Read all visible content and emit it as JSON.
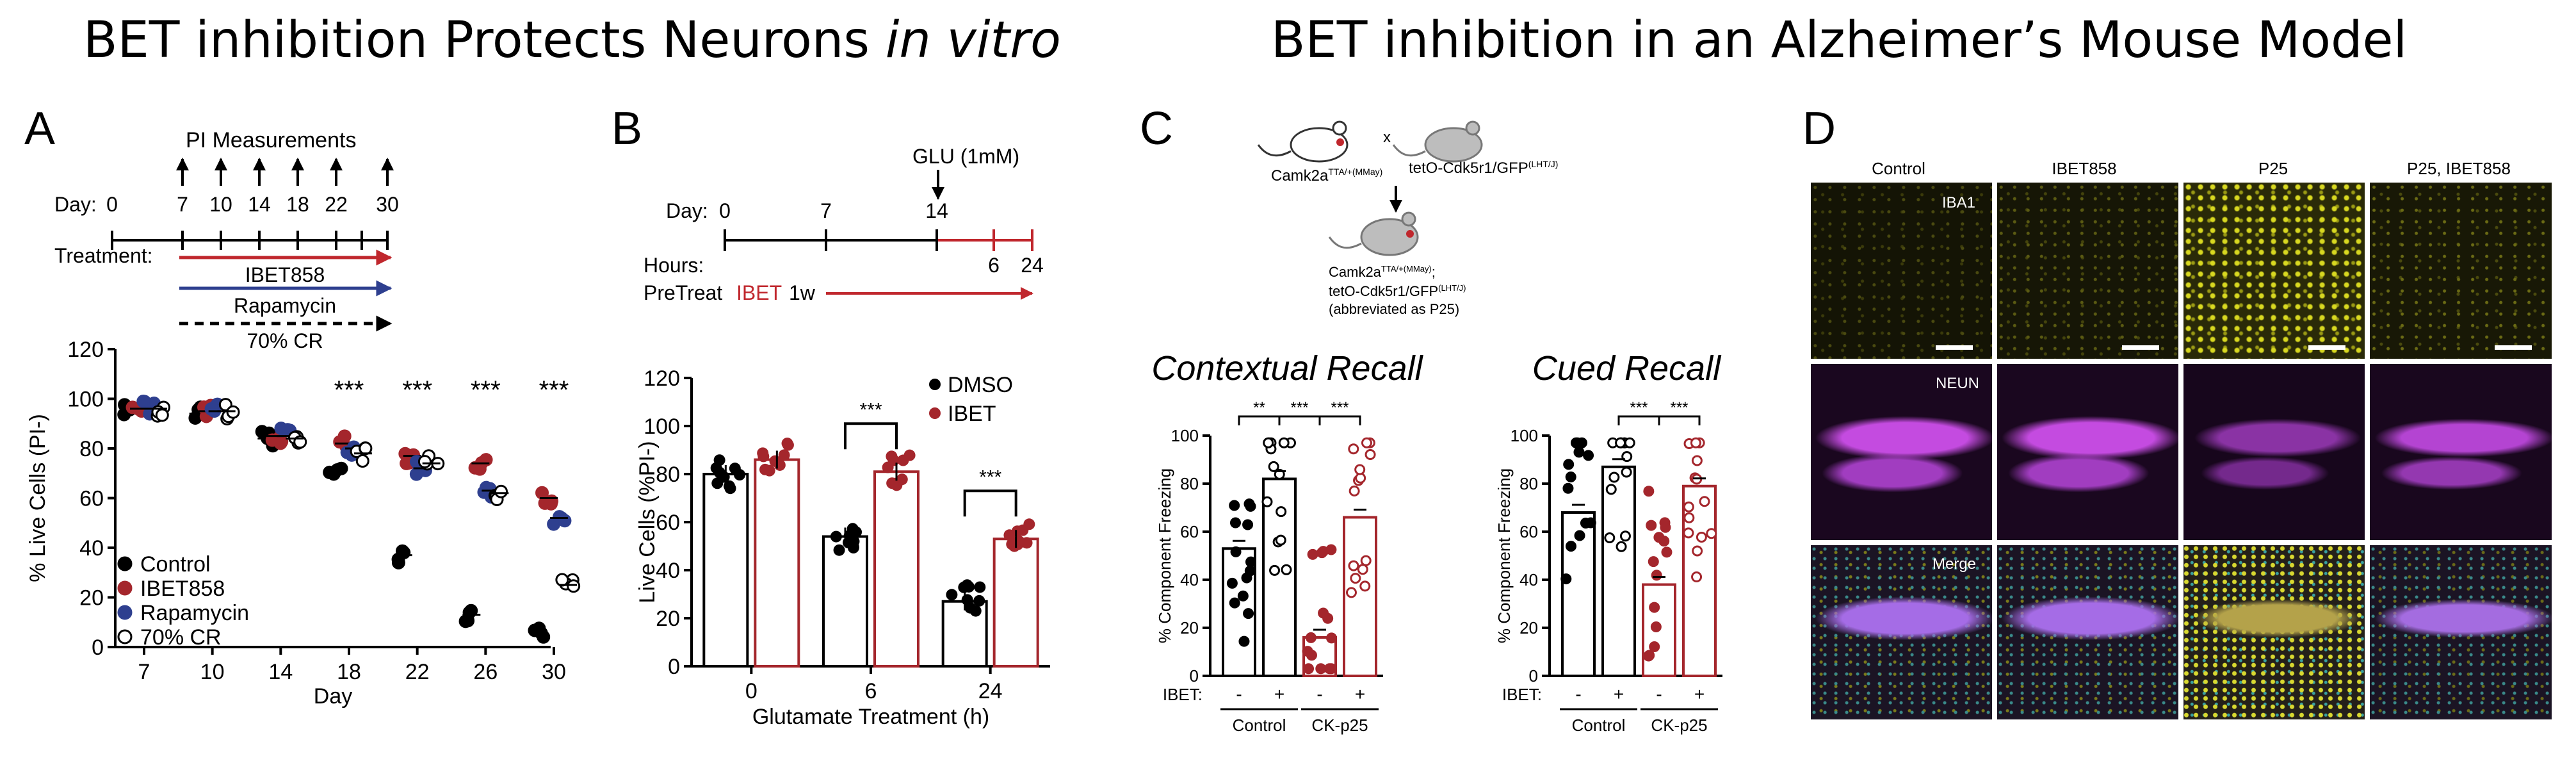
{
  "headings": {
    "left_main": "BET inhibition Protects Neurons ",
    "left_italic": "in vitro",
    "right": "BET inhibition in an Alzheimer’s Mouse Model"
  },
  "panels": {
    "a": "A",
    "b": "B",
    "c": "C",
    "d": "D"
  },
  "panel_a_schematic": {
    "pi_label": "PI Measurements",
    "day_label": "Day:",
    "days": [
      "0",
      "7",
      "10",
      "14",
      "18",
      "22",
      "30"
    ],
    "treatment_label": "Treatment:",
    "arrows": [
      {
        "label": "IBET858",
        "color": "#c0272d",
        "style": "solid"
      },
      {
        "label": "Rapamycin",
        "color": "#2e3f8f",
        "style": "solid"
      },
      {
        "label": "70% CR",
        "color": "#000000",
        "style": "dashed"
      }
    ]
  },
  "panel_b_schematic": {
    "glu_label": "GLU (1mM)",
    "day_label": "Day:",
    "days": [
      "0",
      "7",
      "14"
    ],
    "hours_label": "Hours:",
    "hours": [
      "6",
      "24"
    ],
    "pretreat_label": "PreTreat",
    "pretreat_drug": "IBET",
    "pretreat_duration": "1w"
  },
  "panel_c_schematic": {
    "mouse1": "Camk2a",
    "mouse1_sup": "TTA/+(MMay)",
    "cross": "x",
    "mouse2": "tetO-Cdk5r1/GFP",
    "mouse2_sup": "(LHT/J)",
    "offspring_line1": "Camk2a",
    "offspring_line1_sup": "TTA/+(MMay)",
    "offspring_line1_suffix": ";",
    "offspring_line2": "tetO-Cdk5r1/GFP",
    "offspring_line2_sup": "(LHT/J)",
    "offspring_line3": "(abbreviated as P25)"
  },
  "panel_d": {
    "columns": [
      "Control",
      "IBET858",
      "P25",
      "P25, IBET858"
    ],
    "rows": [
      "IBA1",
      "NEUN",
      "Merge"
    ]
  },
  "chart_data": [
    {
      "id": "A",
      "type": "scatter",
      "x": [
        "7",
        "10",
        "14",
        "18",
        "22",
        "26",
        "30"
      ],
      "xlabel": "Day",
      "ylabel": "% Live Cells (PI-)",
      "ylim": [
        0,
        120
      ],
      "yticks": [
        "0",
        "20",
        "40",
        "60",
        "80",
        "100",
        "120"
      ],
      "significance": [
        "",
        "",
        "",
        "***",
        "***",
        "***",
        "***"
      ],
      "legend": [
        "Control",
        "IBET858",
        "Rapamycin",
        "70% CR"
      ],
      "legend_position": "bottom-left",
      "series": [
        {
          "name": "Control",
          "color": "#000000",
          "marker": "filled",
          "values": [
            96,
            94,
            84,
            70,
            37,
            13,
            5
          ]
        },
        {
          "name": "IBET858",
          "color": "#a4262c",
          "marker": "filled",
          "values": [
            96,
            95,
            85,
            82,
            77,
            74,
            60
          ]
        },
        {
          "name": "Rapamycin",
          "color": "#2e3f8f",
          "marker": "filled",
          "values": [
            96,
            95,
            85,
            80,
            72,
            63,
            52
          ]
        },
        {
          "name": "70% CR",
          "color": "#000000",
          "marker": "open",
          "values": [
            96,
            95,
            84,
            78,
            74,
            62,
            25
          ]
        }
      ]
    },
    {
      "id": "B",
      "type": "bar",
      "categories": [
        "0",
        "6",
        "24"
      ],
      "xlabel": "Glutamate Treatment (h)",
      "ylabel": "Live Cells (%PI-)",
      "ylim": [
        0,
        120
      ],
      "yticks": [
        "0",
        "20",
        "40",
        "60",
        "80",
        "100",
        "120"
      ],
      "legend": [
        "DMSO",
        "IBET"
      ],
      "legend_position": "top-right",
      "significance": [
        "",
        "***",
        "***"
      ],
      "series": [
        {
          "name": "DMSO",
          "color": "#000000",
          "values": [
            80,
            54,
            27
          ]
        },
        {
          "name": "IBET",
          "color": "#a4262c",
          "values": [
            86,
            81,
            53
          ]
        }
      ]
    },
    {
      "id": "C-contextual",
      "type": "bar",
      "title": "Contextual Recall",
      "ylabel": "% Component Freezing",
      "ylim": [
        0,
        100
      ],
      "yticks": [
        "0",
        "20",
        "40",
        "60",
        "80",
        "100"
      ],
      "ibet_label": "IBET:",
      "ibet": [
        "-",
        "+",
        "-",
        "+"
      ],
      "groups": [
        "Control",
        "CK-p25"
      ],
      "significance": [
        {
          "between": [
            0,
            1
          ],
          "label": "**"
        },
        {
          "between": [
            1,
            2
          ],
          "label": "***"
        },
        {
          "between": [
            2,
            3
          ],
          "label": "***"
        }
      ],
      "values": [
        53,
        82,
        16,
        66
      ],
      "colors": [
        "#000000",
        "#000000",
        "#a4262c",
        "#a4262c"
      ],
      "markers": [
        "filled",
        "open",
        "filled",
        "open"
      ]
    },
    {
      "id": "C-cued",
      "type": "bar",
      "title": "Cued Recall",
      "ylabel": "% Component Freezing",
      "ylim": [
        0,
        100
      ],
      "yticks": [
        "0",
        "20",
        "40",
        "60",
        "80",
        "100"
      ],
      "ibet_label": "IBET:",
      "ibet": [
        "-",
        "+",
        "-",
        "+"
      ],
      "groups": [
        "Control",
        "CK-p25"
      ],
      "significance": [
        {
          "between": [
            1,
            2
          ],
          "label": "***"
        },
        {
          "between": [
            2,
            3
          ],
          "label": "***"
        }
      ],
      "values": [
        68,
        87,
        38,
        79
      ],
      "colors": [
        "#000000",
        "#000000",
        "#a4262c",
        "#a4262c"
      ],
      "markers": [
        "filled",
        "open",
        "filled",
        "open"
      ]
    }
  ]
}
